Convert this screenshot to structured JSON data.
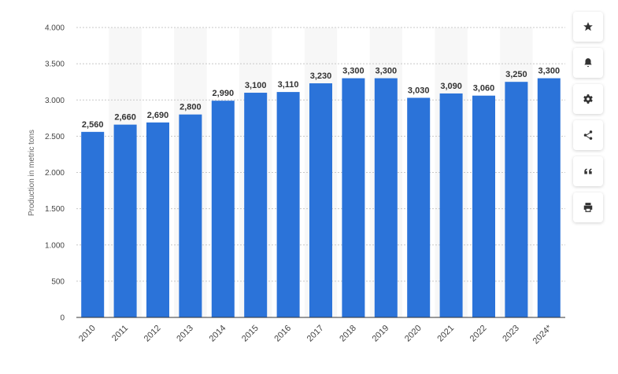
{
  "chart_data": {
    "type": "bar",
    "ylabel": "Production in metric tons",
    "xlabel": "",
    "categories": [
      "2010",
      "2011",
      "2012",
      "2013",
      "2014",
      "2015",
      "2016",
      "2017",
      "2018",
      "2019",
      "2020",
      "2021",
      "2022",
      "2023",
      "2024*"
    ],
    "values": [
      2560,
      2660,
      2690,
      2800,
      2990,
      3100,
      3110,
      3230,
      3300,
      3300,
      3030,
      3090,
      3060,
      3250,
      3300
    ],
    "value_labels": [
      "2,560",
      "2,660",
      "2,690",
      "2,800",
      "2,990",
      "3,100",
      "3,110",
      "3,230",
      "3,300",
      "3,300",
      "3,030",
      "3,090",
      "3,060",
      "3,250",
      "3,300"
    ],
    "yticks": [
      0,
      500,
      1000,
      1500,
      2000,
      2500,
      3000,
      3500,
      4000
    ],
    "ytick_labels": [
      "0",
      "500",
      "1.000",
      "1.500",
      "2.000",
      "2.500",
      "3.000",
      "3.500",
      "4.000"
    ],
    "ylim": [
      0,
      4000
    ],
    "grid": true,
    "bar_color": "#2b73d9",
    "band_color": "#f7f7f7"
  },
  "toolbar": {
    "buttons": [
      {
        "icon": "star-icon",
        "name": "favorite-button"
      },
      {
        "icon": "bell-icon",
        "name": "notification-button"
      },
      {
        "icon": "gear-icon",
        "name": "settings-button"
      },
      {
        "icon": "share-icon",
        "name": "share-button"
      },
      {
        "icon": "quote-icon",
        "name": "cite-button"
      },
      {
        "icon": "print-icon",
        "name": "print-button"
      }
    ]
  }
}
